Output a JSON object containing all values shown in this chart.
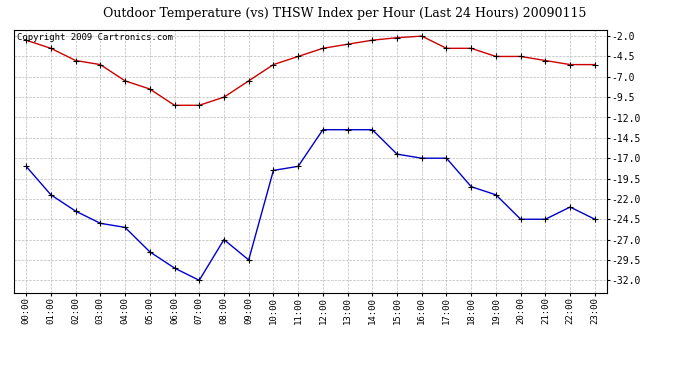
{
  "title": "Outdoor Temperature (vs) THSW Index per Hour (Last 24 Hours) 20090115",
  "copyright": "Copyright 2009 Cartronics.com",
  "hours": [
    "00:00",
    "01:00",
    "02:00",
    "03:00",
    "04:00",
    "05:00",
    "06:00",
    "07:00",
    "08:00",
    "09:00",
    "10:00",
    "11:00",
    "12:00",
    "13:00",
    "14:00",
    "15:00",
    "16:00",
    "17:00",
    "18:00",
    "19:00",
    "20:00",
    "21:00",
    "22:00",
    "23:00"
  ],
  "temp_red": [
    -2.5,
    -3.5,
    -5.0,
    -5.5,
    -7.5,
    -8.5,
    -10.5,
    -10.5,
    -9.5,
    -7.5,
    -5.5,
    -4.5,
    -3.5,
    -3.0,
    -2.5,
    -2.2,
    -2.0,
    -3.5,
    -3.5,
    -4.5,
    -4.5,
    -5.0,
    -5.5,
    -5.5
  ],
  "thsw_blue": [
    -18.0,
    -21.5,
    -23.5,
    -25.0,
    -25.5,
    -28.5,
    -30.5,
    -32.0,
    -27.0,
    -29.5,
    -18.5,
    -18.0,
    -13.5,
    -13.5,
    -13.5,
    -16.5,
    -17.0,
    -17.0,
    -20.5,
    -21.5,
    -24.5,
    -24.5,
    -23.0,
    -24.5
  ],
  "ylim_min": -33.5,
  "ylim_max": -1.25,
  "yticks": [
    -2.0,
    -4.5,
    -7.0,
    -9.5,
    -12.0,
    -14.5,
    -17.0,
    -19.5,
    -22.0,
    -24.5,
    -27.0,
    -29.5,
    -32.0
  ],
  "red_color": "#cc0000",
  "blue_color": "#0000cc",
  "grid_color": "#bbbbbb",
  "bg_color": "#ffffff",
  "title_fontsize": 9,
  "copyright_fontsize": 6.5
}
